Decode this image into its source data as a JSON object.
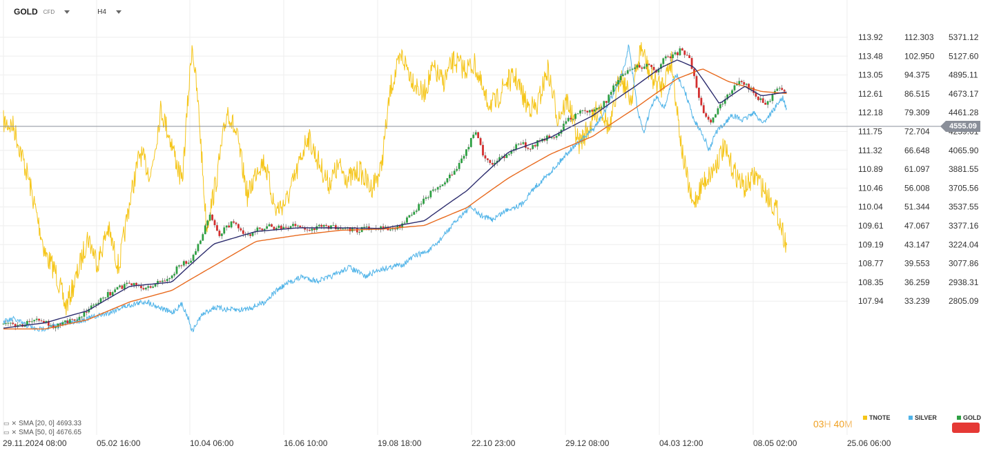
{
  "header": {
    "symbol": "GOLD",
    "symbol_sub": "CFD",
    "timeframe": "H4"
  },
  "indicators": [
    {
      "label": "SMA [20, 0]",
      "value": "4693.33"
    },
    {
      "label": "SMA [50, 0]",
      "value": "4676.65"
    }
  ],
  "timer": {
    "hours": "03",
    "h_unit": "H",
    "minutes": "40",
    "m_unit": "M"
  },
  "current_price": "4555.09",
  "legend": [
    {
      "name": "TNOTE",
      "color": "#f5c518"
    },
    {
      "name": "SILVER",
      "color": "#4fb3e8"
    },
    {
      "name": "GOLD",
      "color": "#2ea043"
    }
  ],
  "colors": {
    "up": "#2ea043",
    "down": "#d32f2f",
    "sma20": "#2d2d6e",
    "sma50": "#e86a1e",
    "grid": "#eeeeee"
  },
  "chart_data": {
    "type": "line",
    "x_ticks": [
      "29.11.2024 08:00",
      "05.02 16:00",
      "10.04 06:00",
      "16.06 10:00",
      "19.08 18:00",
      "22.10 23:00",
      "29.12 08:00",
      "04.03 12:00",
      "08.05 02:00",
      "25.06 06:00"
    ],
    "axes": {
      "tnote": {
        "ticks": [
          "113.92",
          "113.48",
          "113.05",
          "112.61",
          "112.18",
          "111.75",
          "111.32",
          "110.89",
          "110.46",
          "110.04",
          "109.61",
          "109.19",
          "108.77",
          "108.35",
          "107.94"
        ]
      },
      "silver": {
        "ticks": [
          "112.303",
          "102.950",
          "94.375",
          "86.515",
          "79.309",
          "72.704",
          "66.648",
          "61.097",
          "56.008",
          "51.344",
          "47.067",
          "43.147",
          "39.553",
          "36.259",
          "33.239"
        ],
        "scale": "log"
      },
      "gold": {
        "ticks": [
          "5371.12",
          "5127.60",
          "4895.11",
          "4673.17",
          "4461.28",
          "4259.01",
          "4065.90",
          "3881.55",
          "3705.56",
          "3537.55",
          "3377.16",
          "3224.04",
          "3077.86",
          "2938.31",
          "2805.09"
        ],
        "scale": "log"
      }
    },
    "series": [
      {
        "name": "TNOTE",
        "axis": "tnote",
        "values": [
          [
            0,
            112.0
          ],
          [
            0.012,
            111.9
          ],
          [
            0.03,
            110.7
          ],
          [
            0.05,
            109.0
          ],
          [
            0.062,
            108.6
          ],
          [
            0.074,
            107.8
          ],
          [
            0.087,
            108.5
          ],
          [
            0.1,
            109.4
          ],
          [
            0.112,
            108.8
          ],
          [
            0.124,
            109.6
          ],
          [
            0.137,
            108.7
          ],
          [
            0.15,
            110.2
          ],
          [
            0.162,
            111.3
          ],
          [
            0.175,
            110.8
          ],
          [
            0.187,
            112.3
          ],
          [
            0.2,
            111.5
          ],
          [
            0.212,
            110.6
          ],
          [
            0.224,
            113.8
          ],
          [
            0.232,
            112.2
          ],
          [
            0.241,
            109.6
          ],
          [
            0.253,
            110.7
          ],
          [
            0.266,
            112.3
          ],
          [
            0.278,
            111.6
          ],
          [
            0.29,
            110.3
          ],
          [
            0.302,
            111.0
          ],
          [
            0.31,
            111.1
          ],
          [
            0.323,
            110.0
          ],
          [
            0.336,
            110.2
          ],
          [
            0.349,
            110.9
          ],
          [
            0.361,
            111.7
          ],
          [
            0.374,
            111.1
          ],
          [
            0.386,
            110.6
          ],
          [
            0.398,
            111.0
          ],
          [
            0.41,
            110.7
          ],
          [
            0.423,
            110.9
          ],
          [
            0.436,
            110.5
          ],
          [
            0.448,
            110.9
          ],
          [
            0.46,
            112.8
          ],
          [
            0.473,
            113.5
          ],
          [
            0.485,
            113.0
          ],
          [
            0.498,
            112.6
          ],
          [
            0.51,
            113.2
          ],
          [
            0.522,
            112.9
          ],
          [
            0.535,
            113.4
          ],
          [
            0.547,
            113.2
          ],
          [
            0.56,
            113.3
          ],
          [
            0.572,
            112.5
          ],
          [
            0.584,
            112.4
          ],
          [
            0.596,
            112.9
          ],
          [
            0.608,
            113.0
          ],
          [
            0.621,
            112.4
          ],
          [
            0.633,
            112.3
          ],
          [
            0.646,
            113.2
          ],
          [
            0.658,
            112.1
          ],
          [
            0.67,
            112.5
          ],
          [
            0.683,
            111.5
          ],
          [
            0.696,
            111.9
          ],
          [
            0.708,
            112.4
          ],
          [
            0.72,
            111.8
          ],
          [
            0.732,
            113.1
          ],
          [
            0.745,
            112.5
          ],
          [
            0.757,
            113.7
          ],
          [
            0.769,
            113.0
          ],
          [
            0.781,
            112.8
          ],
          [
            0.793,
            113.4
          ],
          [
            0.806,
            111.3
          ],
          [
            0.818,
            110.1
          ],
          [
            0.83,
            110.6
          ],
          [
            0.842,
            110.9
          ],
          [
            0.855,
            111.4
          ],
          [
            0.867,
            110.9
          ],
          [
            0.88,
            110.5
          ],
          [
            0.893,
            110.8
          ],
          [
            0.905,
            110.4
          ],
          [
            0.918,
            110.0
          ],
          [
            0.93,
            109.2
          ]
        ]
      },
      {
        "name": "SILVER",
        "axis": "silver",
        "values": [
          [
            0,
            30.2
          ],
          [
            0.012,
            30.6
          ],
          [
            0.025,
            29.9
          ],
          [
            0.04,
            29.1
          ],
          [
            0.06,
            29.6
          ],
          [
            0.078,
            30.1
          ],
          [
            0.095,
            30.5
          ],
          [
            0.11,
            31.0
          ],
          [
            0.125,
            31.5
          ],
          [
            0.14,
            32.3
          ],
          [
            0.155,
            32.8
          ],
          [
            0.17,
            33.2
          ],
          [
            0.185,
            32.3
          ],
          [
            0.2,
            31.5
          ],
          [
            0.212,
            32.8
          ],
          [
            0.22,
            30.6
          ],
          [
            0.224,
            28.9
          ],
          [
            0.235,
            31.1
          ],
          [
            0.25,
            32.3
          ],
          [
            0.265,
            32.0
          ],
          [
            0.28,
            31.9
          ],
          [
            0.295,
            32.3
          ],
          [
            0.31,
            33.1
          ],
          [
            0.325,
            35.0
          ],
          [
            0.34,
            36.3
          ],
          [
            0.355,
            37.2
          ],
          [
            0.372,
            36.5
          ],
          [
            0.387,
            37.1
          ],
          [
            0.4,
            38.0
          ],
          [
            0.41,
            38.9
          ],
          [
            0.42,
            38.1
          ],
          [
            0.43,
            37.2
          ],
          [
            0.445,
            38.4
          ],
          [
            0.46,
            38.9
          ],
          [
            0.474,
            39.4
          ],
          [
            0.49,
            41.1
          ],
          [
            0.505,
            41.9
          ],
          [
            0.515,
            43.4
          ],
          [
            0.53,
            46.5
          ],
          [
            0.545,
            49.7
          ],
          [
            0.555,
            51.3
          ],
          [
            0.565,
            49.5
          ],
          [
            0.58,
            48.4
          ],
          [
            0.6,
            50.9
          ],
          [
            0.615,
            51.9
          ],
          [
            0.63,
            56.0
          ],
          [
            0.645,
            59.2
          ],
          [
            0.655,
            61.7
          ],
          [
            0.665,
            64.6
          ],
          [
            0.675,
            67.4
          ],
          [
            0.688,
            70.3
          ],
          [
            0.7,
            73.3
          ],
          [
            0.712,
            78.5
          ],
          [
            0.722,
            85.1
          ],
          [
            0.732,
            92.5
          ],
          [
            0.738,
            98.4
          ],
          [
            0.742,
            108.2
          ],
          [
            0.748,
            92.5
          ],
          [
            0.753,
            79.6
          ],
          [
            0.76,
            72.0
          ],
          [
            0.768,
            80.4
          ],
          [
            0.775,
            85.1
          ],
          [
            0.785,
            81.2
          ],
          [
            0.793,
            90.8
          ],
          [
            0.8,
            94.4
          ],
          [
            0.81,
            86.5
          ],
          [
            0.82,
            76.5
          ],
          [
            0.83,
            72.0
          ],
          [
            0.838,
            66.6
          ],
          [
            0.845,
            72.0
          ],
          [
            0.855,
            75.0
          ],
          [
            0.865,
            78.5
          ],
          [
            0.878,
            76.5
          ],
          [
            0.89,
            79.3
          ],
          [
            0.902,
            75.7
          ],
          [
            0.912,
            79.3
          ],
          [
            0.925,
            85.1
          ],
          [
            0.93,
            80.4
          ]
        ]
      },
      {
        "name": "GOLD",
        "axis": "gold",
        "values": [
          [
            0,
            2650
          ],
          [
            0.02,
            2640
          ],
          [
            0.04,
            2680
          ],
          [
            0.06,
            2640
          ],
          [
            0.075,
            2660
          ],
          [
            0.09,
            2700
          ],
          [
            0.11,
            2780
          ],
          [
            0.13,
            2880
          ],
          [
            0.15,
            2930
          ],
          [
            0.165,
            2900
          ],
          [
            0.18,
            2920
          ],
          [
            0.2,
            2980
          ],
          [
            0.21,
            3080
          ],
          [
            0.223,
            3100
          ],
          [
            0.235,
            3290
          ],
          [
            0.245,
            3450
          ],
          [
            0.255,
            3300
          ],
          [
            0.275,
            3420
          ],
          [
            0.287,
            3290
          ],
          [
            0.3,
            3340
          ],
          [
            0.315,
            3380
          ],
          [
            0.33,
            3350
          ],
          [
            0.345,
            3390
          ],
          [
            0.36,
            3330
          ],
          [
            0.38,
            3380
          ],
          [
            0.4,
            3350
          ],
          [
            0.42,
            3340
          ],
          [
            0.44,
            3370
          ],
          [
            0.46,
            3360
          ],
          [
            0.475,
            3390
          ],
          [
            0.49,
            3520
          ],
          [
            0.51,
            3690
          ],
          [
            0.53,
            3810
          ],
          [
            0.545,
            3980
          ],
          [
            0.56,
            4270
          ],
          [
            0.57,
            4020
          ],
          [
            0.58,
            3920
          ],
          [
            0.6,
            4040
          ],
          [
            0.61,
            4140
          ],
          [
            0.625,
            4100
          ],
          [
            0.64,
            4180
          ],
          [
            0.655,
            4210
          ],
          [
            0.67,
            4380
          ],
          [
            0.685,
            4460
          ],
          [
            0.7,
            4480
          ],
          [
            0.715,
            4580
          ],
          [
            0.725,
            4780
          ],
          [
            0.735,
            4900
          ],
          [
            0.75,
            4980
          ],
          [
            0.765,
            5010
          ],
          [
            0.775,
            4920
          ],
          [
            0.785,
            5160
          ],
          [
            0.795,
            5120
          ],
          [
            0.805,
            5210
          ],
          [
            0.815,
            5070
          ],
          [
            0.83,
            4470
          ],
          [
            0.84,
            4370
          ],
          [
            0.85,
            4520
          ],
          [
            0.86,
            4650
          ],
          [
            0.875,
            4820
          ],
          [
            0.89,
            4700
          ],
          [
            0.905,
            4530
          ],
          [
            0.915,
            4700
          ],
          [
            0.928,
            4720
          ],
          [
            0.93,
            4560
          ]
        ]
      },
      {
        "name": "SMA [20, 0]",
        "axis": "gold",
        "values": [
          [
            0,
            2625
          ],
          [
            0.05,
            2660
          ],
          [
            0.1,
            2740
          ],
          [
            0.15,
            2910
          ],
          [
            0.2,
            2940
          ],
          [
            0.25,
            3230
          ],
          [
            0.3,
            3330
          ],
          [
            0.35,
            3360
          ],
          [
            0.4,
            3360
          ],
          [
            0.45,
            3355
          ],
          [
            0.5,
            3420
          ],
          [
            0.55,
            3680
          ],
          [
            0.6,
            4050
          ],
          [
            0.65,
            4200
          ],
          [
            0.7,
            4430
          ],
          [
            0.75,
            4760
          ],
          [
            0.78,
            4980
          ],
          [
            0.8,
            5080
          ],
          [
            0.82,
            4990
          ],
          [
            0.85,
            4560
          ],
          [
            0.88,
            4760
          ],
          [
            0.9,
            4650
          ],
          [
            0.93,
            4693
          ]
        ]
      },
      {
        "name": "SMA [50, 0]",
        "axis": "gold",
        "values": [
          [
            0,
            2620
          ],
          [
            0.05,
            2620
          ],
          [
            0.1,
            2680
          ],
          [
            0.15,
            2800
          ],
          [
            0.2,
            2880
          ],
          [
            0.25,
            3060
          ],
          [
            0.3,
            3250
          ],
          [
            0.35,
            3300
          ],
          [
            0.4,
            3340
          ],
          [
            0.45,
            3350
          ],
          [
            0.5,
            3380
          ],
          [
            0.55,
            3530
          ],
          [
            0.6,
            3800
          ],
          [
            0.65,
            4030
          ],
          [
            0.7,
            4210
          ],
          [
            0.75,
            4510
          ],
          [
            0.8,
            4850
          ],
          [
            0.83,
            4970
          ],
          [
            0.86,
            4820
          ],
          [
            0.9,
            4700
          ],
          [
            0.93,
            4677
          ]
        ]
      }
    ],
    "grid": true
  }
}
